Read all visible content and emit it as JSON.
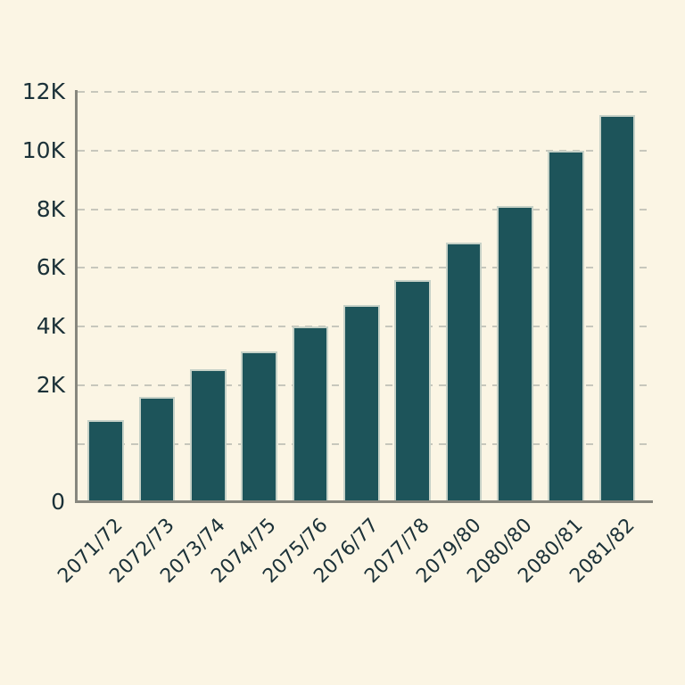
{
  "chart_data": {
    "type": "bar",
    "title": "",
    "categories": [
      "2071/72",
      "2072/73",
      "2073/74",
      "2074/75",
      "2075/76",
      "2076/77",
      "2077/78",
      "2079/80",
      "2080/80",
      "2080/81",
      "2081/82"
    ],
    "values": [
      1400,
      1800,
      2550,
      3150,
      4000,
      4750,
      5600,
      6850,
      8100,
      10000,
      11200
    ],
    "y_tick_labels": [
      "0",
      "2K",
      "4K",
      "6K",
      "8K",
      "10K",
      "12K"
    ],
    "y_tick_values": [
      0,
      2000,
      4000,
      6000,
      8000,
      10000,
      12000
    ],
    "unlabeled_gridline_values": [
      1000
    ],
    "ylim": [
      0,
      12000
    ],
    "xlabel": "",
    "ylabel": "",
    "legend": "none",
    "grid": "horizontal-dashed",
    "x_tick_rotation_deg": 45,
    "axis_note": "pixel distance from 0 to 2K is double the other 2K intervals; an extra unlabeled dashed gridline sits midway between 0 and 2K"
  },
  "colors": {
    "background": "#fbf5e4",
    "bar_fill": "#1d545a",
    "bar_outline": "#e4e7db",
    "axis_line": "#87877e",
    "gridline": "#c7c7bc",
    "label_text": "#1b3138"
  }
}
